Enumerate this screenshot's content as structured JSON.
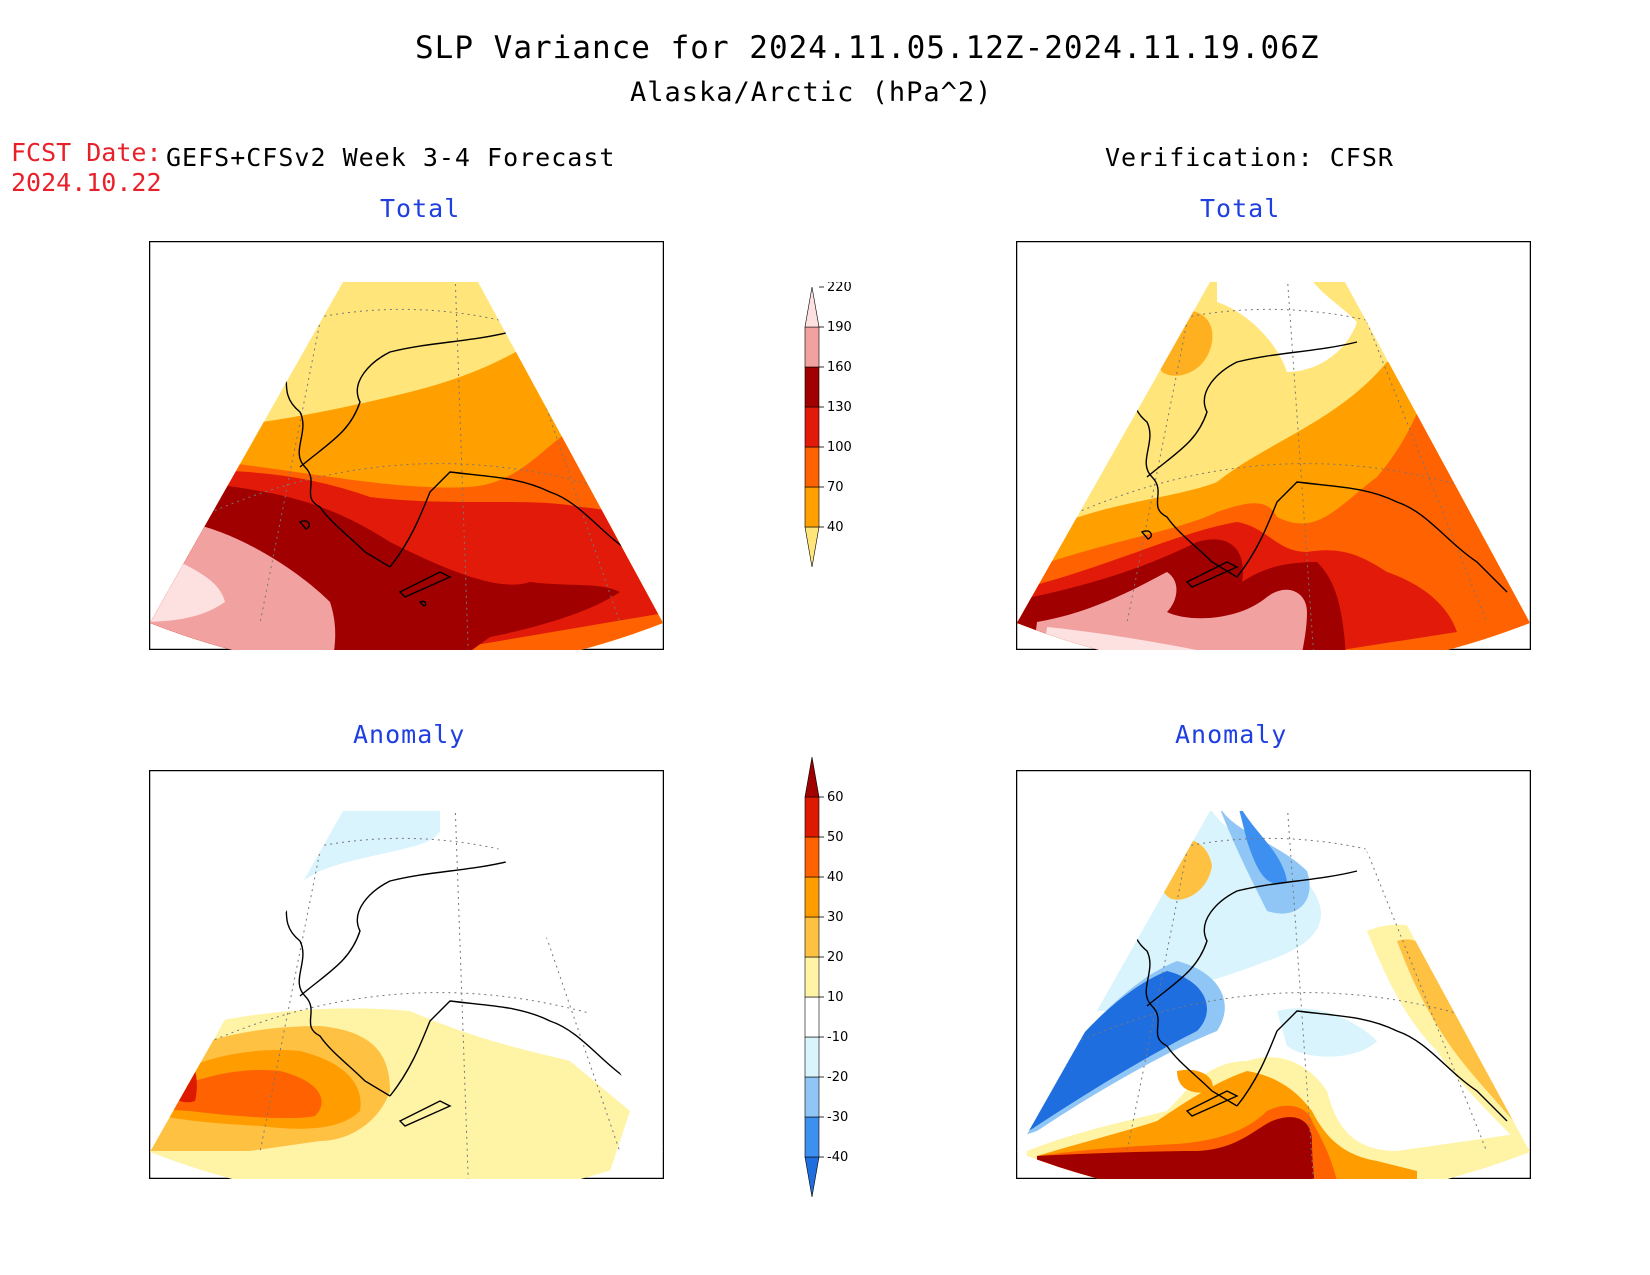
{
  "header": {
    "title": "SLP Variance for 2024.11.05.12Z-2024.11.19.06Z",
    "subtitle": "Alaska/Arctic (hPa^2)",
    "fcst_date_label": "FCST Date:",
    "fcst_date_value": "2024.10.22",
    "left_source": "GEFS+CFSv2 Week 3-4 Forecast",
    "right_source": "Verification: CFSR"
  },
  "panels": {
    "forecast_total": {
      "title": "Total"
    },
    "verification_total": {
      "title": "Total"
    },
    "forecast_anomaly": {
      "title": "Anomaly"
    },
    "verification_anomaly": {
      "title": "Anomaly"
    }
  },
  "colorbars": {
    "total": {
      "levels": [
        "40",
        "70",
        "100",
        "130",
        "160",
        "190",
        "220"
      ],
      "colors": [
        "#ffe57a",
        "#ff9f00",
        "#ff6200",
        "#e21a0a",
        "#a00000",
        "#f2a1a1",
        "#fde0e0"
      ]
    },
    "anomaly": {
      "levels": [
        "-40",
        "-30",
        "-20",
        "-10",
        "10",
        "20",
        "30",
        "40",
        "50",
        "60"
      ],
      "colors": [
        "#1e6ee0",
        "#3d8ff0",
        "#90c6f5",
        "#d9f4fd",
        "#ffffff",
        "#fff3a6",
        "#ffc142",
        "#ff9d00",
        "#ff6200",
        "#dd1a00",
        "#a00000"
      ]
    }
  },
  "colors": {
    "accent_blue": "#1f3fe0",
    "fcst_red": "#e8202a"
  }
}
